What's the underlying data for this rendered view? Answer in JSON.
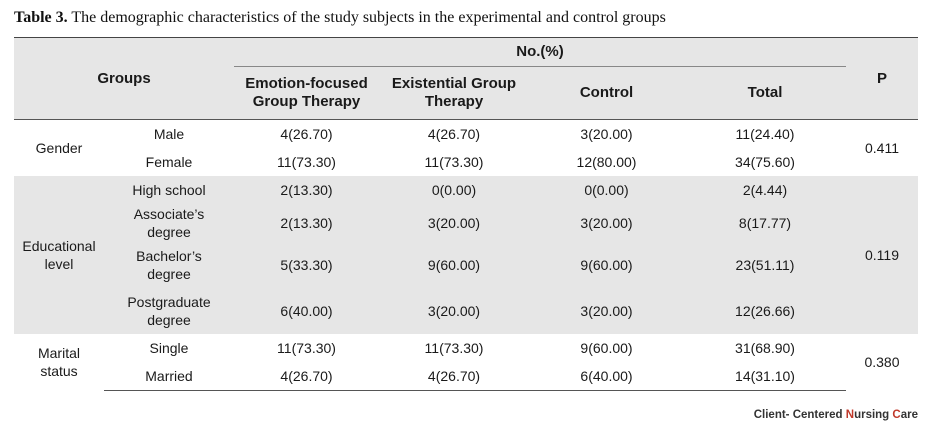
{
  "caption": {
    "label": "Table 3.",
    "text": " The demographic characteristics of the study subjects in the experimental and control groups"
  },
  "header": {
    "groups": "Groups",
    "no_pct": "No.(%)",
    "p": "P",
    "col_efgt_1": "Emotion-focused",
    "col_efgt_2": "Group Therapy",
    "col_egt_1": "Existential Group",
    "col_egt_2": "Therapy",
    "col_control": "Control",
    "col_total": "Total"
  },
  "gender": {
    "label": "Gender",
    "p": "0.411",
    "rows": [
      {
        "sub": "Male",
        "efgt": "4(26.70)",
        "egt": "4(26.70)",
        "control": "3(20.00)",
        "total": "11(24.40)"
      },
      {
        "sub": "Female",
        "efgt": "11(73.30)",
        "egt": "11(73.30)",
        "control": "12(80.00)",
        "total": "34(75.60)"
      }
    ]
  },
  "education": {
    "label_1": "Educational",
    "label_2": "level",
    "p": "0.119",
    "rows": [
      {
        "sub_1": "High school",
        "sub_2": "",
        "efgt": "2(13.30)",
        "egt": "0(0.00)",
        "control": "0(0.00)",
        "total": "2(4.44)"
      },
      {
        "sub_1": "Associate’s",
        "sub_2": "degree",
        "efgt": "2(13.30)",
        "egt": "3(20.00)",
        "control": "3(20.00)",
        "total": "8(17.77)"
      },
      {
        "sub_1": "Bachelor’s",
        "sub_2": "degree",
        "efgt": "5(33.30)",
        "egt": "9(60.00)",
        "control": "9(60.00)",
        "total": "23(51.11)"
      },
      {
        "sub_1": "Postgraduate",
        "sub_2": "degree",
        "efgt": "6(40.00)",
        "egt": "3(20.00)",
        "control": "3(20.00)",
        "total": "12(26.66)"
      }
    ]
  },
  "marital": {
    "label": "Marital status",
    "p": "0.380",
    "rows": [
      {
        "sub": "Single",
        "efgt": "11(73.30)",
        "egt": "11(73.30)",
        "control": "9(60.00)",
        "total": "31(68.90)"
      },
      {
        "sub": "Married",
        "efgt": "4(26.70)",
        "egt": "4(26.70)",
        "control": "6(40.00)",
        "total": "14(31.10)"
      }
    ]
  },
  "footer": {
    "part1": "Client- Centered ",
    "part2": "N",
    "part3": "ursing ",
    "part4": "C",
    "part5": "are"
  },
  "colors": {
    "header_bg": "#e6e6e6",
    "accent": "#c0392b"
  }
}
